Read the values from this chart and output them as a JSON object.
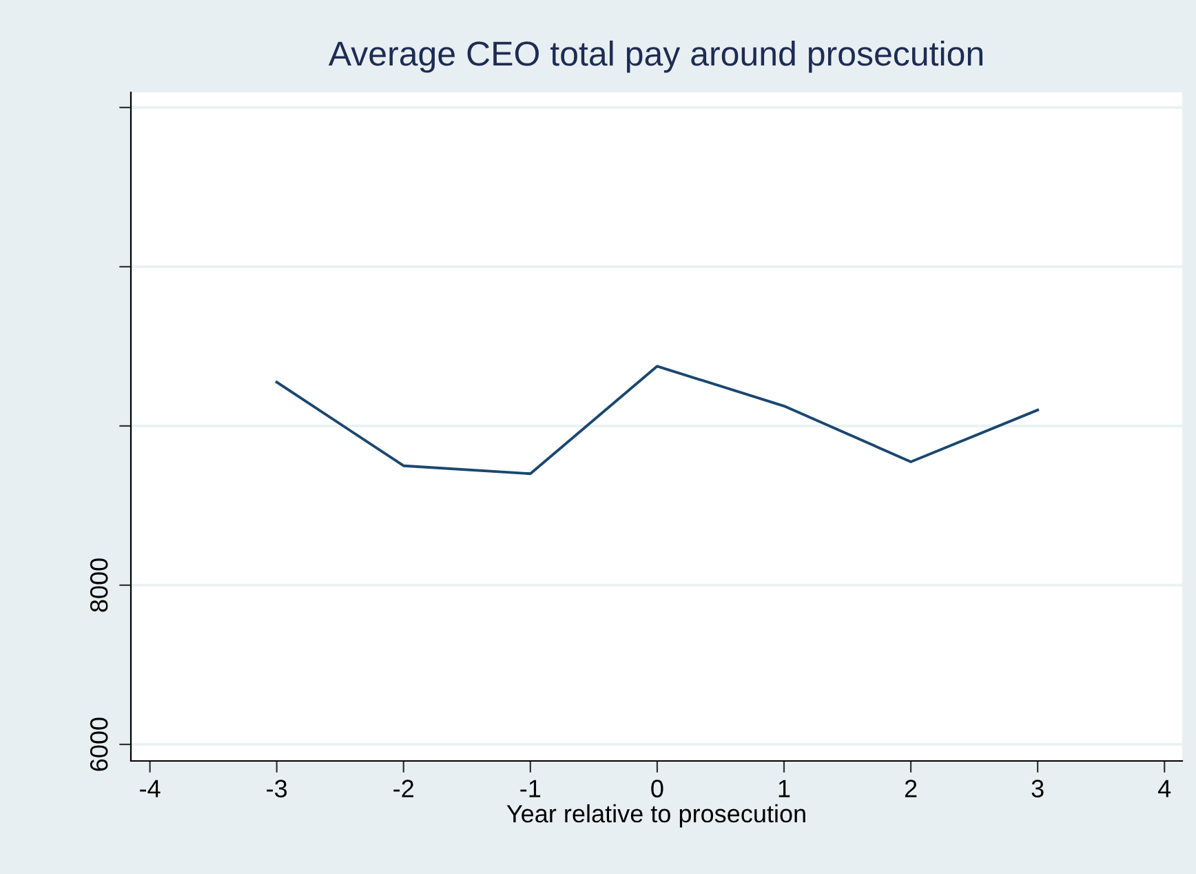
{
  "chart_data": {
    "type": "line",
    "title": "Average CEO total pay around prosecution",
    "xlabel": "Year relative to prosecution",
    "x": [
      -3,
      -2,
      -1,
      0,
      1,
      2,
      3
    ],
    "series": [
      {
        "color": "#1a476f",
        "values": [
          10550,
          9500,
          9400,
          10750,
          10250,
          9550,
          10200
        ]
      }
    ],
    "xlim": [
      -4.15,
      4.14
    ],
    "xticks": [
      -4,
      -3,
      -2,
      -1,
      0,
      1,
      2,
      3,
      4
    ],
    "ylim": [
      5792,
      14190
    ],
    "yticks": [
      6000,
      8000,
      {
        "value": 10000,
        "label": null
      },
      {
        "value": 12000,
        "label": null
      },
      {
        "value": 14000,
        "label": null
      }
    ],
    "grid": "y",
    "marker": "none",
    "line_style": "solid"
  }
}
